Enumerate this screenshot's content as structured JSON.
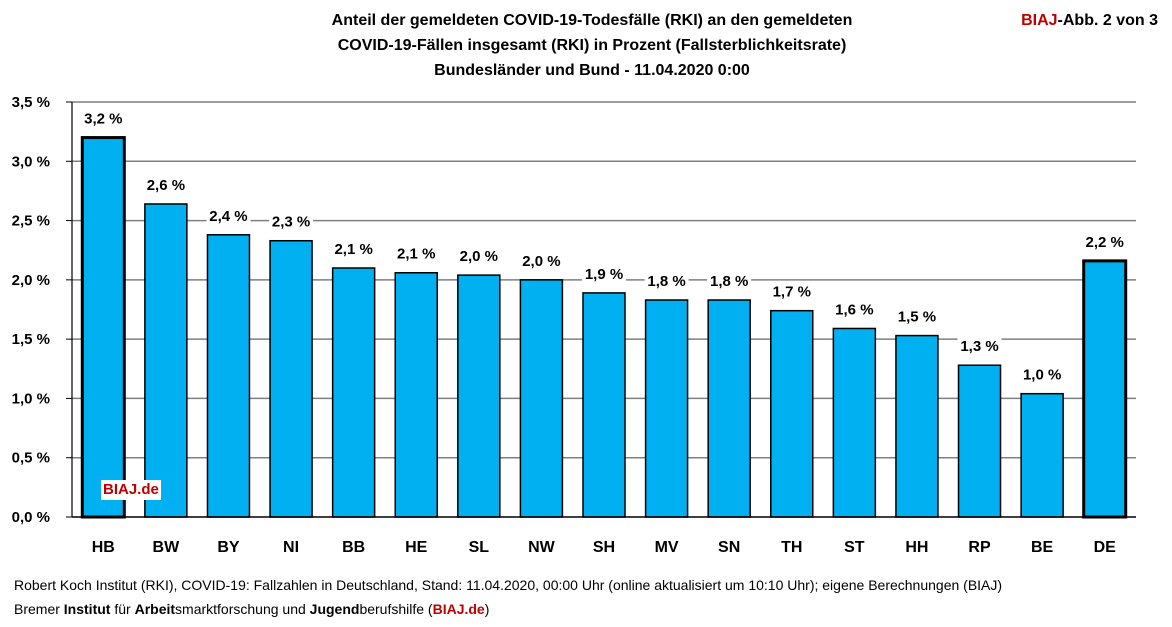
{
  "title": {
    "line1": "Anteil der gemeldeten COVID-19-Todesfälle (RKI) an den gemeldeten",
    "line2": "COVID-19-Fällen insgesamt (RKI) in Prozent (Fallsterblichkeitsrate)",
    "line3": "Bundesländer und Bund - 11.04.2020 0:00"
  },
  "badge": {
    "brand": "BIAJ",
    "rest": "-Abb. 2 von 3"
  },
  "watermark": "BIAJ.de",
  "source": {
    "line1": "Robert Koch Institut (RKI), COVID-19: Fallzahlen in Deutschland, Stand: 11.04.2020, 00:00 Uhr (online aktualisiert um 10:10 Uhr); eigene Berechnungen (BIAJ)",
    "line2": {
      "p1": "Bremer ",
      "b1": "Institut",
      "p2": " für ",
      "b2": "Arbeit",
      "p3": "smarktforschung und ",
      "b3": "Jugend",
      "p4": "berufshilfe (",
      "link": "BIAJ.de",
      "p5": ")"
    }
  },
  "colors": {
    "bar": "#00b0f0",
    "bar_stroke": "#000000",
    "grid": "#7f7f7f",
    "brand": "#c00000"
  },
  "chart_data": {
    "type": "bar",
    "categories": [
      "HB",
      "BW",
      "BY",
      "NI",
      "BB",
      "HE",
      "SL",
      "NW",
      "SH",
      "MV",
      "SN",
      "TH",
      "ST",
      "HH",
      "RP",
      "BE",
      "DE"
    ],
    "values": [
      3.2,
      2.64,
      2.38,
      2.33,
      2.1,
      2.06,
      2.04,
      2.0,
      1.89,
      1.83,
      1.83,
      1.74,
      1.59,
      1.53,
      1.28,
      1.04,
      2.16
    ],
    "data_labels": [
      "3,2 %",
      "2,6 %",
      "2,4 %",
      "2,3 %",
      "2,1 %",
      "2,1 %",
      "2,0 %",
      "2,0 %",
      "1,9 %",
      "1,8 %",
      "1,8 %",
      "1,7 %",
      "1,6 %",
      "1,5 %",
      "1,3 %",
      "1,0 %",
      "2,2 %"
    ],
    "highlighted": [
      "HB",
      "DE"
    ],
    "ylim": [
      0,
      3.5
    ],
    "yticks": [
      0,
      0.5,
      1.0,
      1.5,
      2.0,
      2.5,
      3.0,
      3.5
    ],
    "ytick_labels": [
      "0,0 %",
      "0,5 %",
      "1,0 %",
      "1,5 %",
      "2,0 %",
      "2,5 %",
      "3,0 %",
      "3,5 %"
    ],
    "grid": true,
    "legend": "none"
  }
}
